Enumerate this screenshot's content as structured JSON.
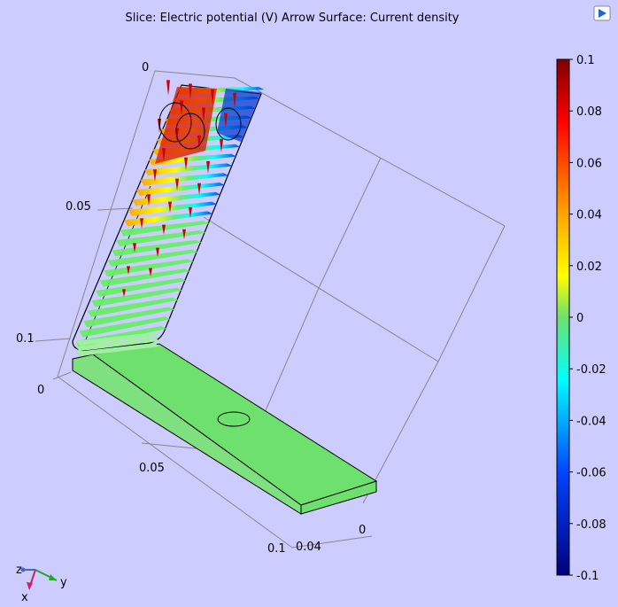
{
  "title": "Slice: Electric potential (V)  Arrow Surface: Current density",
  "colorbar": {
    "ticks": [
      "0.1",
      "0.08",
      "0.06",
      "0.04",
      "0.02",
      "0",
      "-0.02",
      "-0.04",
      "-0.06",
      "-0.08",
      "-0.1"
    ],
    "colormap": [
      "#7f0000",
      "#ff0000",
      "#ffa500",
      "#ffff00",
      "#66ee66",
      "#00ffff",
      "#0055ff",
      "#00007f"
    ]
  },
  "axis_labels": {
    "z_top": "0",
    "z_mid": "0.05",
    "z_low": "0.1",
    "x_zero": "0",
    "x_mid": "0.05",
    "x_end": "0.1",
    "y_mid": "0.04",
    "y_zero": "0"
  },
  "triad": {
    "z": "z",
    "y": "y",
    "x": "x"
  },
  "colors": {
    "background": "#ccccff",
    "arrow": "#cc0000",
    "body_green": "#6ee06e"
  }
}
